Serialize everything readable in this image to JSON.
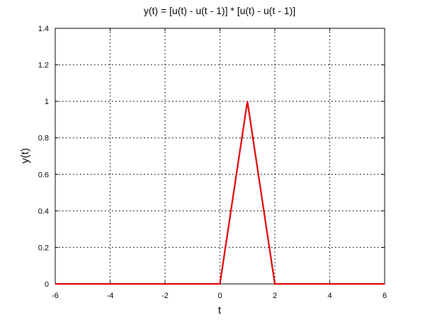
{
  "chart_data": {
    "type": "line",
    "title": "y(t) = [u(t) - u(t - 1)] * [u(t) - u(t - 1)]",
    "xlabel": "t",
    "ylabel": "y(t)",
    "xlim": [
      -6,
      6
    ],
    "ylim": [
      0,
      1.4
    ],
    "x_ticks": [
      -6,
      -4,
      -2,
      0,
      2,
      4,
      6
    ],
    "y_ticks": [
      0,
      0.2,
      0.4,
      0.6,
      0.8,
      1,
      1.2,
      1.4
    ],
    "x_tick_labels": [
      "-6",
      "-4",
      "-2",
      "0",
      "2",
      "4",
      "6"
    ],
    "y_tick_labels": [
      "0",
      "0.2",
      "0.4",
      "0.6",
      "0.8",
      "1",
      "1.2",
      "1.4"
    ],
    "grid": true,
    "series": [
      {
        "color": "#e00000",
        "x": [
          -6,
          0,
          1,
          2,
          6
        ],
        "y": [
          0,
          0,
          1,
          0,
          0
        ]
      }
    ]
  }
}
